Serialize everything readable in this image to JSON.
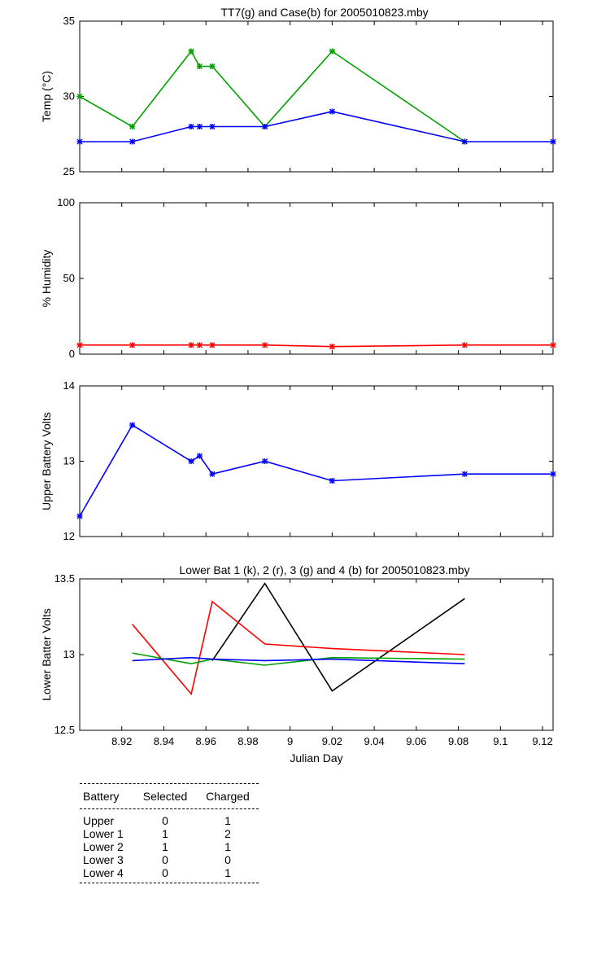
{
  "chart_data": [
    {
      "type": "line",
      "title": "TT7(g) and Case(b) for 2005010823.mby",
      "xlabel": "",
      "ylabel": "Temp  (°C)",
      "xlim": [
        8.9,
        9.125
      ],
      "ylim": [
        25,
        35
      ],
      "yticks": [
        "25",
        "30",
        "35"
      ],
      "markers": true,
      "series": [
        {
          "color": "#00a000",
          "x": [
            8.9,
            8.925,
            8.953,
            8.957,
            8.963,
            8.988,
            9.02,
            9.083
          ],
          "y": [
            30,
            28,
            33,
            32,
            32,
            28,
            33,
            27
          ]
        },
        {
          "color": "#0000ff",
          "x": [
            8.9,
            8.925,
            8.953,
            8.957,
            8.963,
            8.988,
            9.02,
            9.083,
            9.125
          ],
          "y": [
            27,
            27,
            28,
            28,
            28,
            28,
            29,
            27,
            27
          ]
        }
      ]
    },
    {
      "type": "line",
      "title": "",
      "xlabel": "",
      "ylabel": "% Humidity",
      "xlim": [
        8.9,
        9.125
      ],
      "ylim": [
        0,
        100
      ],
      "yticks": [
        "0",
        "50",
        "100"
      ],
      "markers": true,
      "series": [
        {
          "color": "#ff0000",
          "x": [
            8.9,
            8.925,
            8.953,
            8.957,
            8.963,
            8.988,
            9.02,
            9.083,
            9.125
          ],
          "y": [
            6,
            6,
            6,
            6,
            6,
            6,
            5,
            6,
            6
          ]
        }
      ]
    },
    {
      "type": "line",
      "title": "",
      "xlabel": "",
      "ylabel": "Upper Battery Volts",
      "xlim": [
        8.9,
        9.125
      ],
      "ylim": [
        12,
        14
      ],
      "yticks": [
        "12",
        "13",
        "14"
      ],
      "markers": true,
      "series": [
        {
          "color": "#0000ff",
          "x": [
            8.9,
            8.925,
            8.953,
            8.957,
            8.963,
            8.988,
            9.02,
            9.083,
            9.125
          ],
          "y": [
            12.27,
            13.48,
            13.0,
            13.07,
            12.83,
            13.0,
            12.74,
            12.83,
            12.83
          ]
        }
      ]
    },
    {
      "type": "line",
      "title": "Lower Bat 1 (k), 2 (r), 3 (g) and 4 (b) for 2005010823.mby",
      "xlabel": "Julian Day",
      "ylabel": "Lower Batter Volts",
      "xlim": [
        8.9,
        9.125
      ],
      "ylim": [
        12.5,
        13.5
      ],
      "yticks": [
        "12.5",
        "13",
        "13.5"
      ],
      "xticks": [
        "8.92",
        "8.94",
        "8.96",
        "8.98",
        "9",
        "9.02",
        "9.04",
        "9.06",
        "9.08",
        "9.1",
        "9.12"
      ],
      "markers": false,
      "series": [
        {
          "color": "#000000",
          "x": [
            8.963,
            8.988,
            9.02,
            9.083
          ],
          "y": [
            12.96,
            13.47,
            12.76,
            13.37
          ]
        },
        {
          "color": "#ff0000",
          "x": [
            8.925,
            8.953,
            8.963,
            8.988,
            9.02,
            9.083
          ],
          "y": [
            13.2,
            12.74,
            13.35,
            13.07,
            13.04,
            13.0
          ]
        },
        {
          "color": "#00a000",
          "x": [
            8.925,
            8.953,
            8.963,
            8.988,
            9.02,
            9.083
          ],
          "y": [
            13.01,
            12.94,
            12.97,
            12.93,
            12.98,
            12.97
          ]
        },
        {
          "color": "#0000ff",
          "x": [
            8.925,
            8.953,
            8.963,
            8.988,
            9.02,
            9.083
          ],
          "y": [
            12.96,
            12.98,
            12.97,
            12.96,
            12.97,
            12.94
          ]
        }
      ]
    }
  ],
  "table": {
    "headers": [
      "Battery",
      "Selected",
      "Charged"
    ],
    "rows": [
      {
        "battery": "Upper",
        "selected": "0",
        "charged": "1"
      },
      {
        "battery": "Lower 1",
        "selected": "1",
        "charged": "2"
      },
      {
        "battery": "Lower 2",
        "selected": "1",
        "charged": "1"
      },
      {
        "battery": "Lower 3",
        "selected": "0",
        "charged": "0"
      },
      {
        "battery": "Lower 4",
        "selected": "0",
        "charged": "1"
      }
    ]
  }
}
